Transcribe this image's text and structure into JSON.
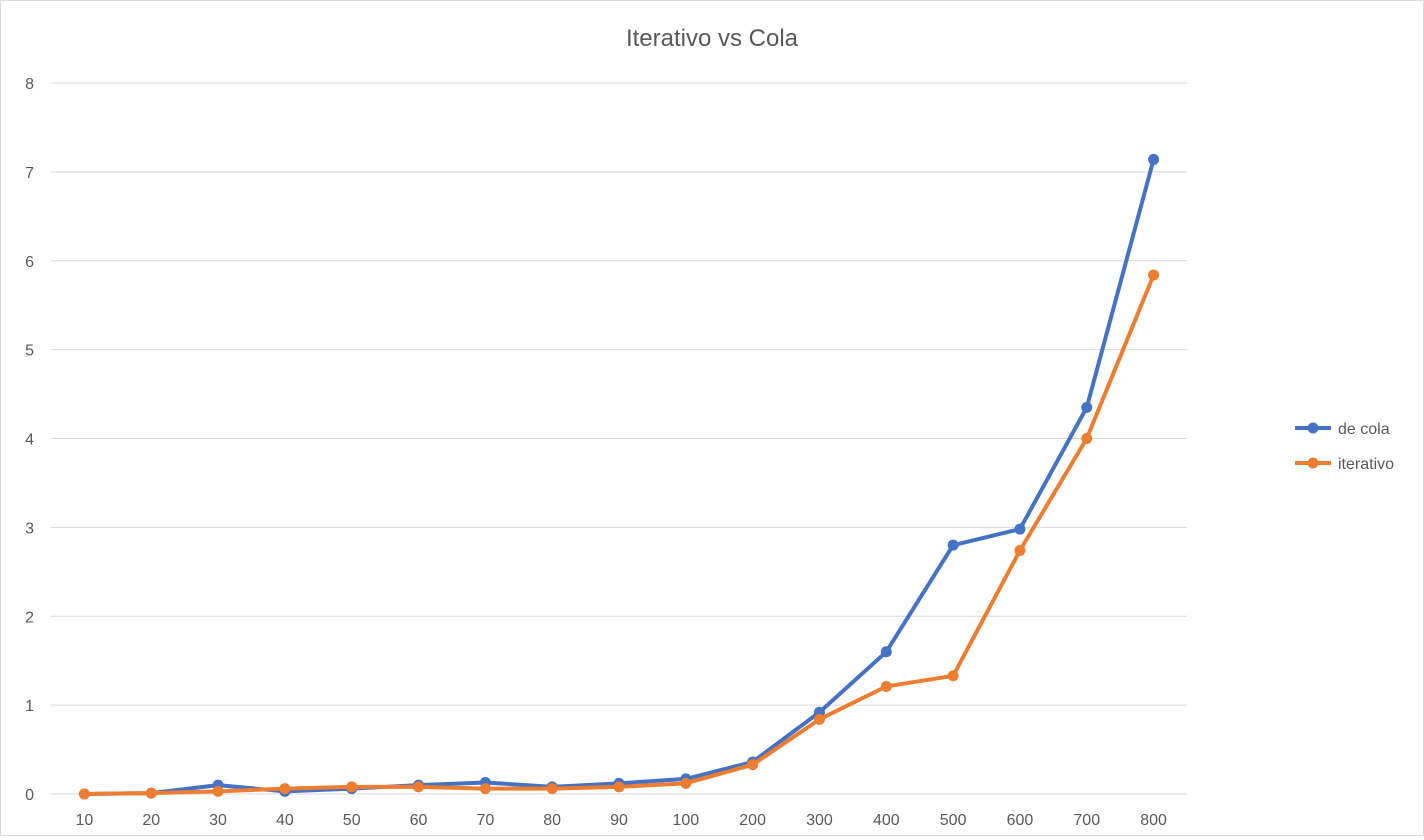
{
  "chart_data": {
    "type": "line",
    "title": "Iterativo vs Cola",
    "xlabel": "",
    "ylabel": "",
    "categories": [
      "10",
      "20",
      "30",
      "40",
      "50",
      "60",
      "70",
      "80",
      "90",
      "100",
      "200",
      "300",
      "400",
      "500",
      "600",
      "700",
      "800"
    ],
    "ylim": [
      0,
      8
    ],
    "yticks": [
      "0",
      "1",
      "2",
      "3",
      "4",
      "5",
      "6",
      "7",
      "8"
    ],
    "grid": "horizontal",
    "legend_position": "right",
    "series": [
      {
        "name": "de cola",
        "color": "#4472C4",
        "values": [
          0,
          0.01,
          0.1,
          0.03,
          0.06,
          0.1,
          0.13,
          0.08,
          0.12,
          0.17,
          0.36,
          0.92,
          1.6,
          2.8,
          2.98,
          4.35,
          7.14
        ]
      },
      {
        "name": "iterativo",
        "color": "#ED7D31",
        "values": [
          0,
          0.01,
          0.03,
          0.06,
          0.08,
          0.08,
          0.06,
          0.06,
          0.08,
          0.12,
          0.33,
          0.84,
          1.21,
          1.33,
          2.74,
          4.0,
          5.84
        ]
      }
    ],
    "colors": {
      "gridline": "#d9d9d9",
      "tick_text": "#595959",
      "title_text": "#595959"
    }
  }
}
